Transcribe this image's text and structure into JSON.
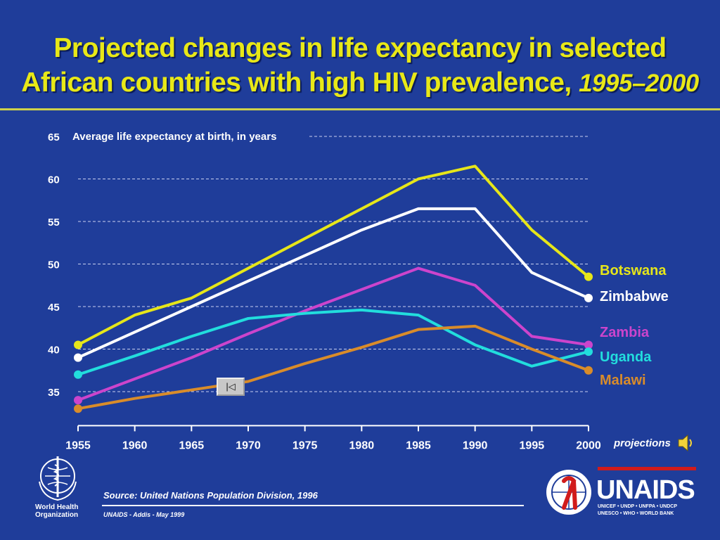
{
  "title": {
    "line1": "Projected changes in life expectancy in selected",
    "line2": "African countries with high HIV prevalence,",
    "years": "1995–2000"
  },
  "chart_data": {
    "type": "line",
    "ylabel": "Average life expectancy at birth, in years",
    "x": [
      1955,
      1960,
      1965,
      1970,
      1975,
      1980,
      1985,
      1990,
      1995,
      2000
    ],
    "xticks": [
      "1955",
      "1960",
      "1965",
      "1970",
      "1975",
      "1980",
      "1985",
      "1990",
      "1995",
      "2000"
    ],
    "yticks": [
      "35",
      "40",
      "45",
      "50",
      "55",
      "60",
      "65"
    ],
    "ylim": [
      31,
      65
    ],
    "xlim": [
      1955,
      2000
    ],
    "grid": "dashed horizontal",
    "projection_label": "projections",
    "series": [
      {
        "name": "Botswana",
        "color": "#e6e619",
        "values": [
          40.5,
          44,
          46,
          49.5,
          53,
          56.5,
          60,
          61.5,
          54,
          48.5
        ]
      },
      {
        "name": "Zimbabwe",
        "color": "#ffffff",
        "values": [
          39,
          42,
          45,
          48,
          51,
          54,
          56.5,
          56.5,
          49,
          46
        ]
      },
      {
        "name": "Zambia",
        "color": "#cc44cc",
        "values": [
          34,
          36.5,
          39,
          41.8,
          44.5,
          47,
          49.5,
          47.5,
          41.5,
          40.5
        ]
      },
      {
        "name": "Uganda",
        "color": "#22dddd",
        "values": [
          37,
          39.2,
          41.5,
          43.6,
          44.2,
          44.6,
          44,
          40.5,
          38,
          39.7
        ]
      },
      {
        "name": "Malawi",
        "color": "#d98c2a",
        "values": [
          33,
          34.2,
          35.2,
          36.2,
          38.3,
          40.2,
          42.3,
          42.7,
          40,
          37.5
        ]
      }
    ]
  },
  "footer": {
    "source": "Source: United Nations Population Division, 1996",
    "credit": "UNAIDS - Addis - May 1999",
    "who_line1": "World Health",
    "who_line2": "Organization",
    "unaids": "UNAIDS",
    "unaids_sub1": "UNICEF • UNDP • UNFPA • UNDCP",
    "unaids_sub2": "UNESCO • WHO • WORLD BANK"
  },
  "icons": {
    "nav": "rewind-icon",
    "speaker": "speaker-icon",
    "who": "who-emblem-icon",
    "unaids": "unaids-emblem-icon"
  }
}
